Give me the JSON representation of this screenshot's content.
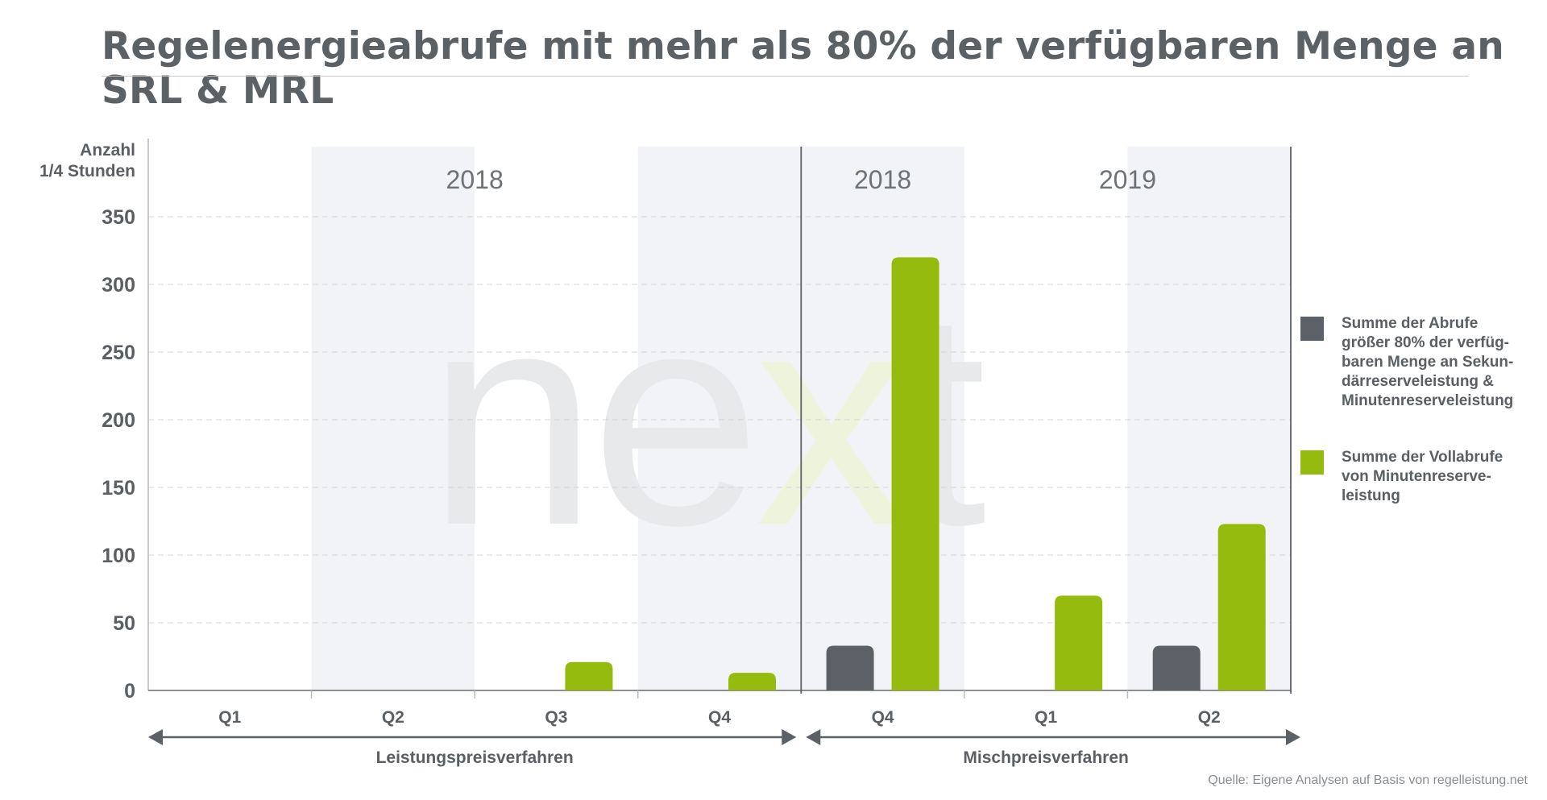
{
  "title": "Regelenergieabrufe mit mehr als 80% der verfügbaren Menge an SRL & MRL",
  "source": "Quelle: Eigene Analysen auf Basis von regelleistung.net",
  "colors": {
    "series_dark": "#5b6166",
    "series_green": "#95bb0f",
    "band": "#f2f3f6",
    "grid": "#d2d4d7",
    "text": "#5a5f63"
  },
  "chart_data": {
    "type": "bar",
    "y_axis_label_lines": [
      "Anzahl",
      "1/4 Stunden"
    ],
    "ylim": [
      0,
      350
    ],
    "yticks": [
      0,
      50,
      100,
      150,
      200,
      250,
      300,
      350
    ],
    "grid": true,
    "legend_position": "right",
    "categories": [
      "Q1",
      "Q2",
      "Q3",
      "Q4",
      "Q4",
      "Q1",
      "Q2"
    ],
    "year_labels": [
      {
        "text": "2018",
        "from": 0,
        "to": 3
      },
      {
        "text": "2018",
        "from": 4,
        "to": 4
      },
      {
        "text": "2019",
        "from": 5,
        "to": 6
      }
    ],
    "shaded_categories": [
      1,
      3,
      4,
      6
    ],
    "regime_divider_after": 3,
    "regimes": [
      {
        "label": "Leistungspreisverfahren",
        "from": 0,
        "to": 3
      },
      {
        "label": "Mischpreisverfahren",
        "from": 4,
        "to": 6
      }
    ],
    "series": [
      {
        "name": "Summe der Abrufe größer 80% der verfügbaren Menge an Sekundärreserveleistung & Minutenreserveleistung",
        "color": "#5b6166",
        "values": [
          0,
          0,
          0,
          0,
          33,
          0,
          33
        ]
      },
      {
        "name": "Summe der Vollabrufe von Minutenreserveleistung",
        "color": "#95bb0f",
        "values": [
          0,
          0,
          21,
          13,
          320,
          70,
          123
        ]
      }
    ]
  },
  "legend": [
    {
      "lines": [
        "Summe der Abrufe",
        "größer 80% der verfüg-",
        "baren Menge an Sekun-",
        "därreserveleistung &",
        "Minutenreserveleistung"
      ],
      "color": "#5b6166"
    },
    {
      "lines": [
        "Summe der Vollabrufe",
        "von Minutenreserve-",
        "leistung"
      ],
      "color": "#95bb0f"
    }
  ],
  "watermark": {
    "text": "next",
    "accent_letter_index": 2
  }
}
